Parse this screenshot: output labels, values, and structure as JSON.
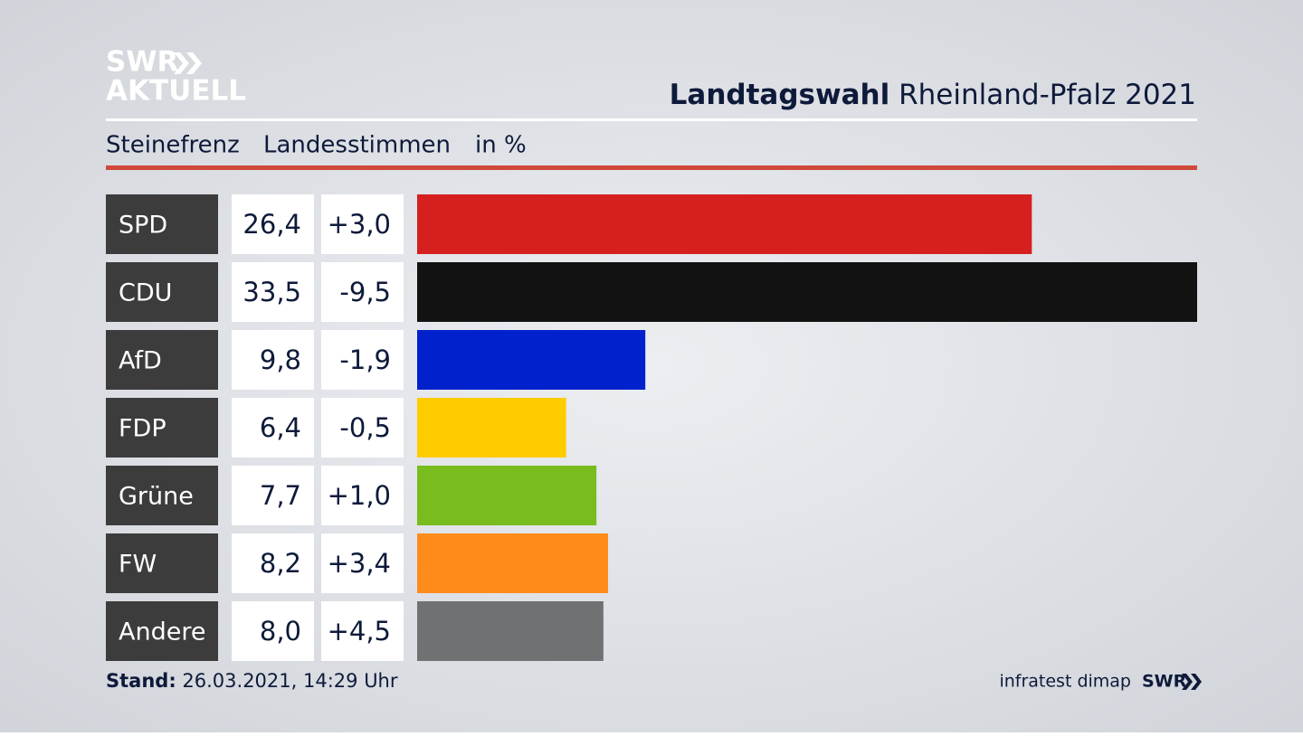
{
  "logo": {
    "line1": "SWR",
    "line2": "AKTUELL"
  },
  "title_bold": "Landtagswahl",
  "title_rest": "Rheinland-Pfalz 2021",
  "subtitle": {
    "place": "Steinefrenz",
    "kind": "Landesstimmen",
    "unit": "in %"
  },
  "footer": {
    "stand_label": "Stand:",
    "stand": "26.03.2021, 14:29 Uhr",
    "source": "infratest dimap",
    "brand": "SWR"
  },
  "chart_data": {
    "type": "bar",
    "categories": [
      "SPD",
      "CDU",
      "AfD",
      "FDP",
      "Grüne",
      "FW",
      "Andere"
    ],
    "values": [
      26.4,
      33.5,
      9.8,
      6.4,
      7.7,
      8.2,
      8.0
    ],
    "value_labels": [
      "26,4",
      "33,5",
      "9,8",
      "6,4",
      "7,7",
      "8,2",
      "8,0"
    ],
    "changes": [
      3.0,
      -9.5,
      -1.9,
      -0.5,
      1.0,
      3.4,
      4.5
    ],
    "change_labels": [
      "+3,0",
      "-9,5",
      "-1,9",
      "-0,5",
      "+1,0",
      "+3,4",
      "+4,5"
    ],
    "colors": [
      "#d61f1f",
      "#121212",
      "#0021cc",
      "#ffcc00",
      "#78bc1e",
      "#ff8c1a",
      "#707173"
    ],
    "xlim": [
      0,
      33.5
    ]
  }
}
